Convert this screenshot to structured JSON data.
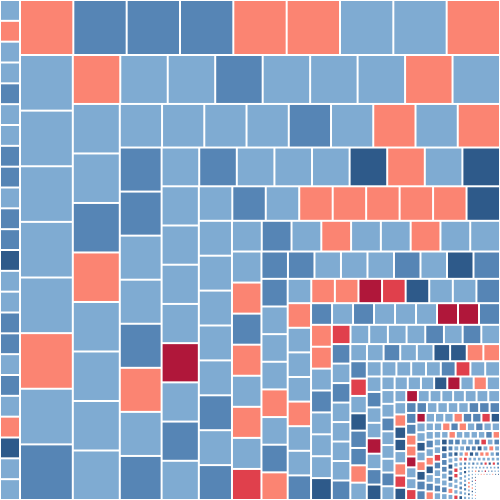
{
  "palette": {
    "light_blue": "#7fabd2",
    "mid_blue": "#5685b5",
    "dark_blue": "#2e5a8a",
    "salmon": "#fb8472",
    "red": "#e0404c",
    "crimson": "#b0173a",
    "gap": "#ffffff"
  },
  "tile_color_weights": {
    "light_blue": 0.56,
    "mid_blue": 0.2,
    "dark_blue": 0.07,
    "salmon": 0.11,
    "red": 0.03,
    "crimson": 0.03
  },
  "icon": "rectangle-tiling-spiral"
}
